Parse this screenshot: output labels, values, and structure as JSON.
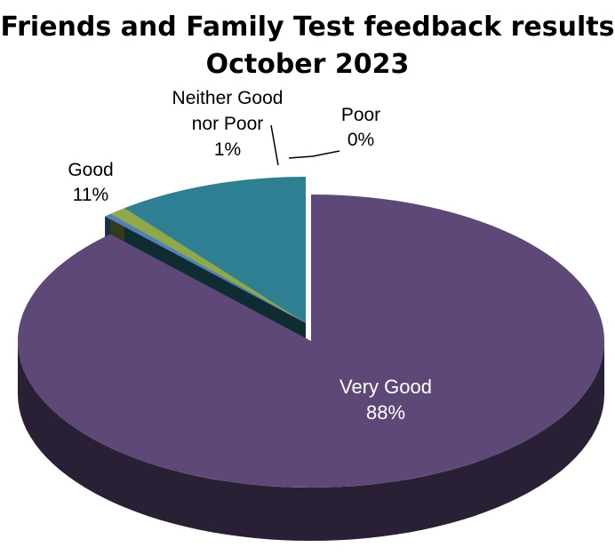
{
  "chart_data": {
    "type": "pie",
    "title_lines": [
      "Friends and Family Test feedback results",
      "October 2023"
    ],
    "three_d": true,
    "slices": [
      {
        "label": "Very Good",
        "percent_label": "88%",
        "value": 88,
        "color": "#5E4878"
      },
      {
        "label": "Poor",
        "percent_label": "0%",
        "value": 0.4,
        "color": "#4F81BD"
      },
      {
        "label": "Neither Good nor Poor",
        "label_lines": [
          "Neither Good",
          "nor Poor"
        ],
        "percent_label": "1%",
        "value": 1,
        "color": "#8FA84C"
      },
      {
        "label": "Good",
        "percent_label": "11%",
        "value": 10.6,
        "color": "#2F7F93"
      }
    ]
  }
}
